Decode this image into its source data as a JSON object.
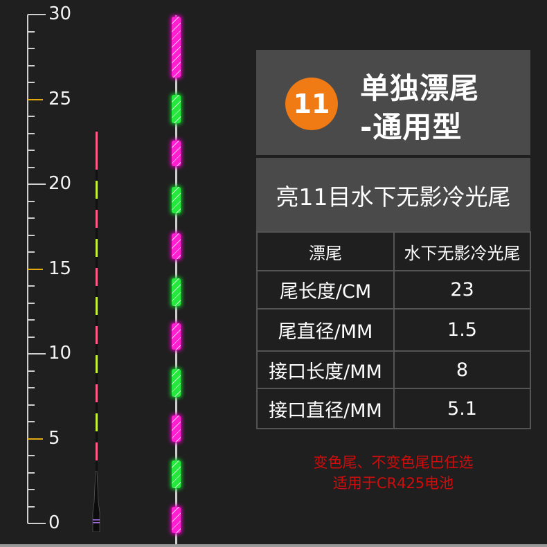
{
  "ruler": {
    "labels": [
      "0",
      "5",
      "10",
      "15",
      "20",
      "25",
      "30"
    ],
    "min": 0,
    "max": 30,
    "highlight_color": "#e3a90e"
  },
  "title_panel": {
    "badge": "11",
    "badge_color": "#f07a14",
    "title_line1": "单独漂尾",
    "title_line2": "-通用型"
  },
  "subtitle": "亮11目水下无影冷光尾",
  "spec_table": {
    "header": [
      "漂尾",
      "水下无影冷光尾"
    ],
    "rows": [
      [
        "尾长度/CM",
        "23"
      ],
      [
        "尾直径/MM",
        "1.5"
      ],
      [
        "接口长度/MM",
        "8"
      ],
      [
        "接口直径/MM",
        "5.1"
      ]
    ]
  },
  "notes": [
    "变色尾、不变色尾巴任选",
    "适用于CR425电池"
  ],
  "colors": {
    "pink": "#ff1ed0",
    "green": "#25e83c",
    "note_red": "#d00c0c"
  }
}
